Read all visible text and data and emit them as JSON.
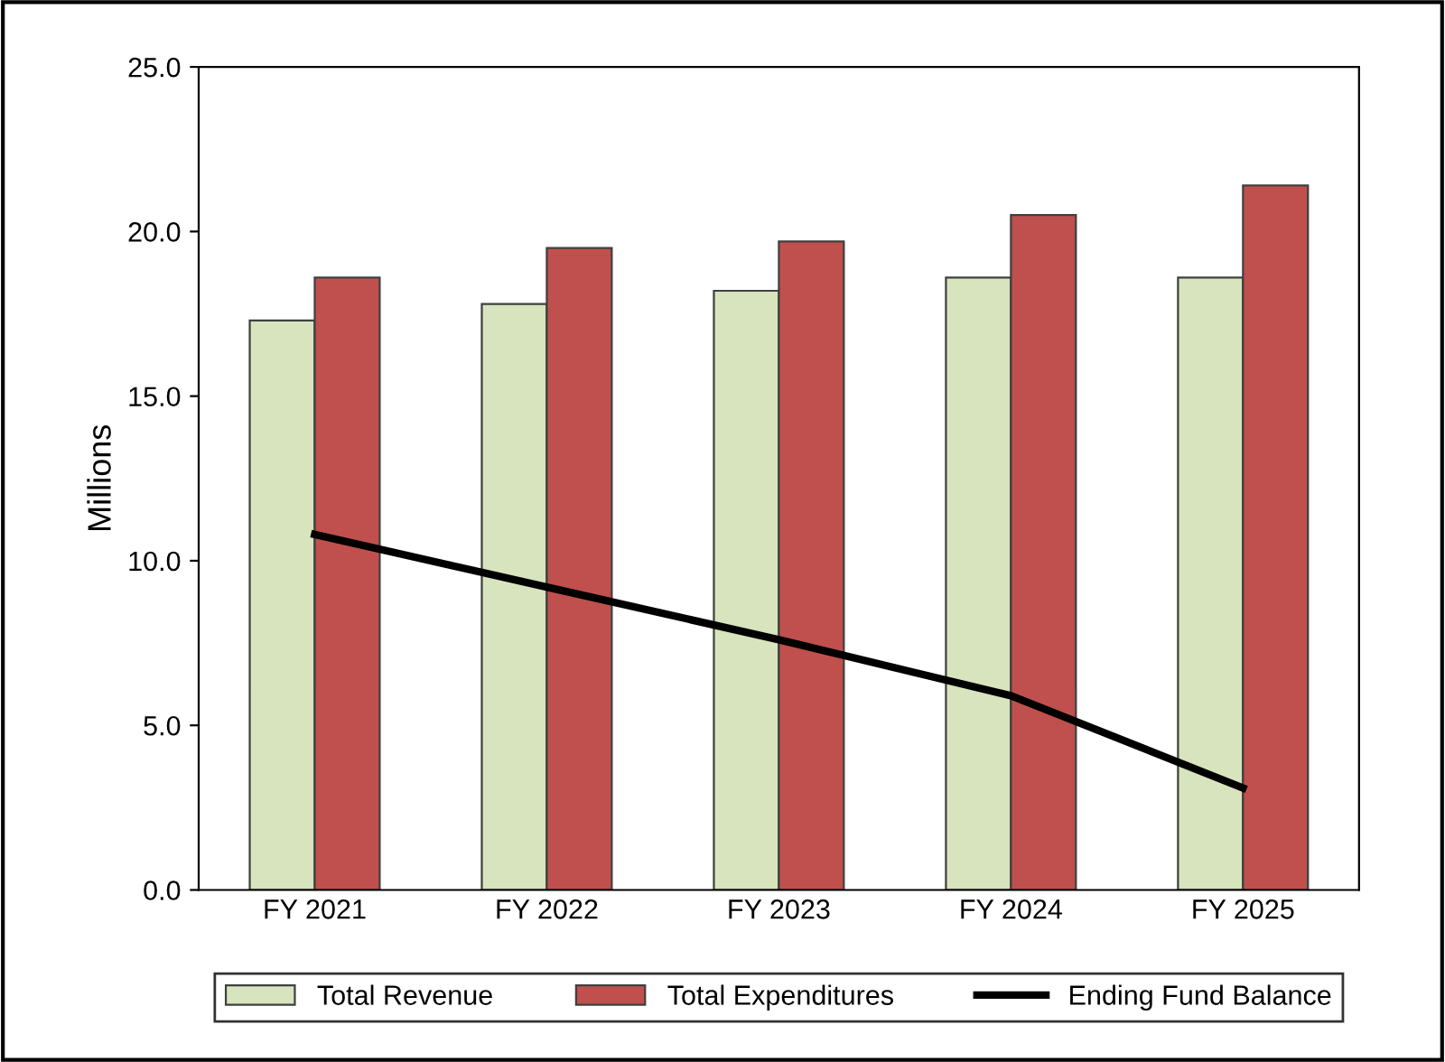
{
  "chart_data": {
    "type": "bar",
    "ylabel": "Millions",
    "categories": [
      "FY 2021",
      "FY 2022",
      "FY 2023",
      "FY 2024",
      "FY 2025"
    ],
    "series": [
      {
        "name": "Total Revenue",
        "color": "#d7e4bd",
        "values": [
          17.3,
          17.8,
          18.2,
          18.6,
          18.6
        ]
      },
      {
        "name": "Total Expenditures",
        "color": "#c0504d",
        "values": [
          18.6,
          19.5,
          19.7,
          20.5,
          21.4
        ]
      },
      {
        "name": "Ending Fund Balance",
        "type": "line",
        "color": "#000000",
        "values": [
          10.8,
          9.2,
          7.6,
          5.9,
          3.1
        ]
      }
    ],
    "ylim": [
      0,
      25
    ],
    "yticks": [
      {
        "value": 0,
        "label": "0.0"
      },
      {
        "value": 5,
        "label": "5.0"
      },
      {
        "value": 10,
        "label": "10.0"
      },
      {
        "value": 15,
        "label": "15.0"
      },
      {
        "value": 20,
        "label": "20.0"
      },
      {
        "value": 25,
        "label": "25.0"
      }
    ],
    "grid": false,
    "legend": "bottom",
    "marker": "none",
    "line_style": "solid"
  }
}
